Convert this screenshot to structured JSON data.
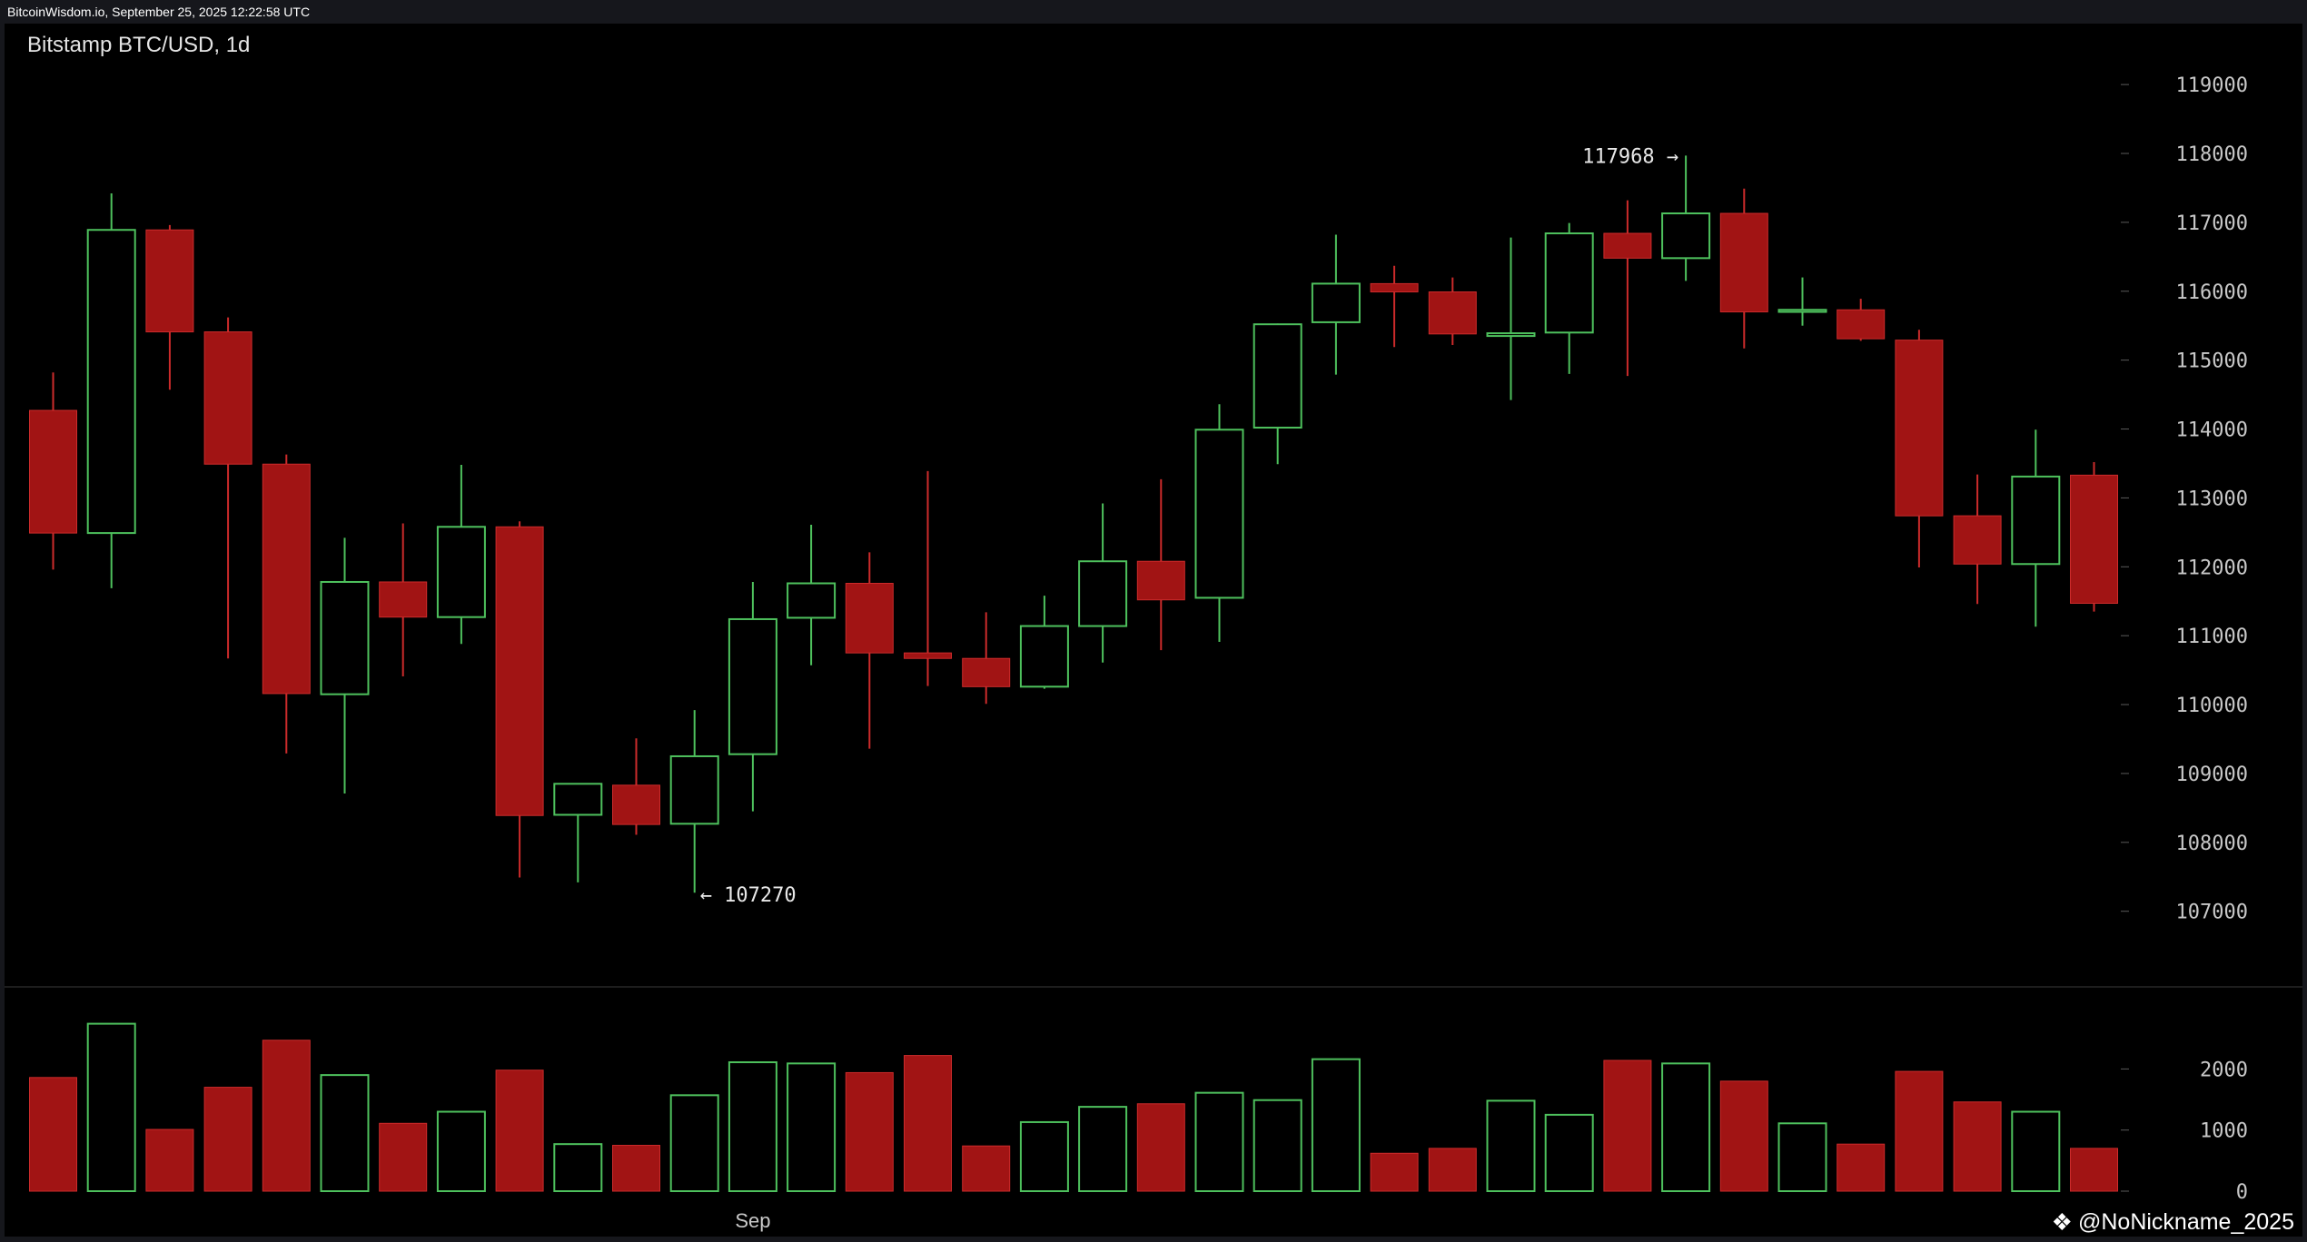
{
  "header": {
    "text": "BitcoinWisdom.io, September 25, 2025 12:22:58 UTC"
  },
  "watermark": {
    "icon": "binance-diamond-icon",
    "text": "@NoNickname_2025"
  },
  "colors": {
    "up": "#4ec15d",
    "down": "#a11414",
    "down_border": "#cc2b2b",
    "axis_text": "#c8c8c8",
    "background": "#000000"
  },
  "chart_data": {
    "type": "candlestick",
    "title": "Bitstamp BTC/USD, 1d",
    "x_labels": [
      {
        "index": 12,
        "label": "Sep"
      }
    ],
    "ylim": [
      106100,
      119700
    ],
    "y_ticks": [
      107000,
      108000,
      109000,
      110000,
      111000,
      112000,
      113000,
      114000,
      115000,
      116000,
      117000,
      118000,
      119000
    ],
    "volume_ylim": [
      0,
      3150
    ],
    "volume_ticks": [
      0,
      1000,
      2000
    ],
    "annotations": [
      {
        "text": "117968 →",
        "index": 28,
        "price": 117968
      },
      {
        "text": "← 107270",
        "index": 11,
        "price": 107270
      }
    ],
    "candles": [
      {
        "open": 114270,
        "high": 114820,
        "low": 111960,
        "close": 112490,
        "volume": 1860
      },
      {
        "open": 112490,
        "high": 117420,
        "low": 111690,
        "close": 116890,
        "volume": 2740
      },
      {
        "open": 116890,
        "high": 116960,
        "low": 114570,
        "close": 115410,
        "volume": 1010
      },
      {
        "open": 115410,
        "high": 115620,
        "low": 110670,
        "close": 113490,
        "volume": 1700
      },
      {
        "open": 113490,
        "high": 113630,
        "low": 109290,
        "close": 110160,
        "volume": 2470
      },
      {
        "open": 110150,
        "high": 112420,
        "low": 108710,
        "close": 111780,
        "volume": 1900
      },
      {
        "open": 111780,
        "high": 112630,
        "low": 110410,
        "close": 111270,
        "volume": 1110
      },
      {
        "open": 111270,
        "high": 113480,
        "low": 110880,
        "close": 112580,
        "volume": 1300
      },
      {
        "open": 112580,
        "high": 112660,
        "low": 107490,
        "close": 108390,
        "volume": 1980
      },
      {
        "open": 108400,
        "high": 108860,
        "low": 107420,
        "close": 108850,
        "volume": 770
      },
      {
        "open": 108830,
        "high": 109510,
        "low": 108110,
        "close": 108260,
        "volume": 750
      },
      {
        "open": 108270,
        "high": 109920,
        "low": 107270,
        "close": 109250,
        "volume": 1570
      },
      {
        "open": 109280,
        "high": 111780,
        "low": 108450,
        "close": 111240,
        "volume": 2110
      },
      {
        "open": 111260,
        "high": 112610,
        "low": 110570,
        "close": 111760,
        "volume": 2090
      },
      {
        "open": 111760,
        "high": 112210,
        "low": 109360,
        "close": 110750,
        "volume": 1940
      },
      {
        "open": 110750,
        "high": 113390,
        "low": 110270,
        "close": 110670,
        "volume": 2220
      },
      {
        "open": 110670,
        "high": 111340,
        "low": 110010,
        "close": 110260,
        "volume": 740
      },
      {
        "open": 110260,
        "high": 111580,
        "low": 110230,
        "close": 111140,
        "volume": 1130
      },
      {
        "open": 111140,
        "high": 112920,
        "low": 110610,
        "close": 112080,
        "volume": 1380
      },
      {
        "open": 112080,
        "high": 113270,
        "low": 110790,
        "close": 111520,
        "volume": 1430
      },
      {
        "open": 111550,
        "high": 114360,
        "low": 110910,
        "close": 113990,
        "volume": 1610
      },
      {
        "open": 114020,
        "high": 115530,
        "low": 113490,
        "close": 115520,
        "volume": 1490
      },
      {
        "open": 115550,
        "high": 116820,
        "low": 114790,
        "close": 116110,
        "volume": 2160
      },
      {
        "open": 116110,
        "high": 116370,
        "low": 115190,
        "close": 115990,
        "volume": 620
      },
      {
        "open": 115990,
        "high": 116200,
        "low": 115220,
        "close": 115380,
        "volume": 700
      },
      {
        "open": 115350,
        "high": 116780,
        "low": 114420,
        "close": 115390,
        "volume": 1480
      },
      {
        "open": 115400,
        "high": 116990,
        "low": 114800,
        "close": 116840,
        "volume": 1250
      },
      {
        "open": 116840,
        "high": 117320,
        "low": 114770,
        "close": 116480,
        "volume": 2140
      },
      {
        "open": 116480,
        "high": 117968,
        "low": 116150,
        "close": 117130,
        "volume": 2090
      },
      {
        "open": 117130,
        "high": 117490,
        "low": 115170,
        "close": 115700,
        "volume": 1800
      },
      {
        "open": 115700,
        "high": 116200,
        "low": 115500,
        "close": 115730,
        "volume": 1110
      },
      {
        "open": 115730,
        "high": 115890,
        "low": 115280,
        "close": 115310,
        "volume": 770
      },
      {
        "open": 115290,
        "high": 115440,
        "low": 111990,
        "close": 112740,
        "volume": 1960
      },
      {
        "open": 112740,
        "high": 113340,
        "low": 111460,
        "close": 112040,
        "volume": 1460
      },
      {
        "open": 112040,
        "high": 113990,
        "low": 111130,
        "close": 113310,
        "volume": 1300
      },
      {
        "open": 113330,
        "high": 113520,
        "low": 111350,
        "close": 111470,
        "volume": 700
      }
    ]
  }
}
